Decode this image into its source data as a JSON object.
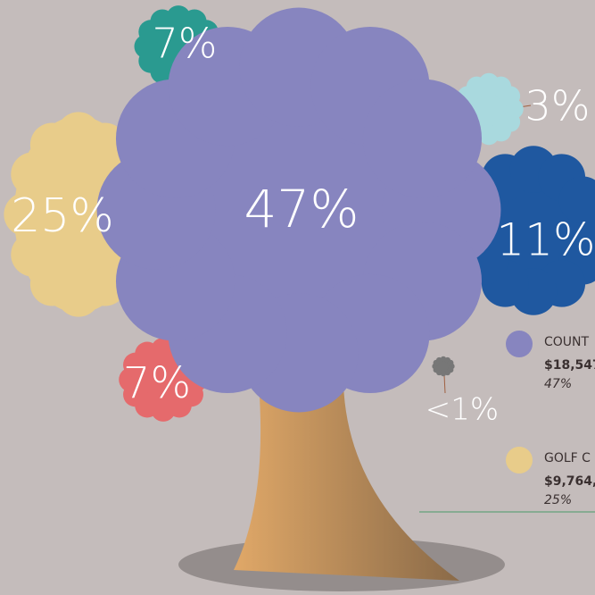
{
  "blobs": [
    {
      "label": "7%",
      "color": "#2a9a90"
    },
    {
      "label": "3%",
      "color": "#a9d9de"
    },
    {
      "label": "11%",
      "color": "#1f58a0"
    },
    {
      "label": "25%",
      "color": "#e8cc8a"
    },
    {
      "label": "7%",
      "color": "#e56a6c"
    },
    {
      "label": "<1%",
      "color": "#777777"
    },
    {
      "label": "47%",
      "color": "#8785bf"
    }
  ],
  "legend": [
    {
      "name": "COUNT",
      "amount": "$18,547",
      "share": "47%",
      "color": "#8785bf"
    },
    {
      "name": "GOLF C",
      "amount": "$9,764,",
      "share": "25%",
      "color": "#e8cc8a"
    }
  ]
}
